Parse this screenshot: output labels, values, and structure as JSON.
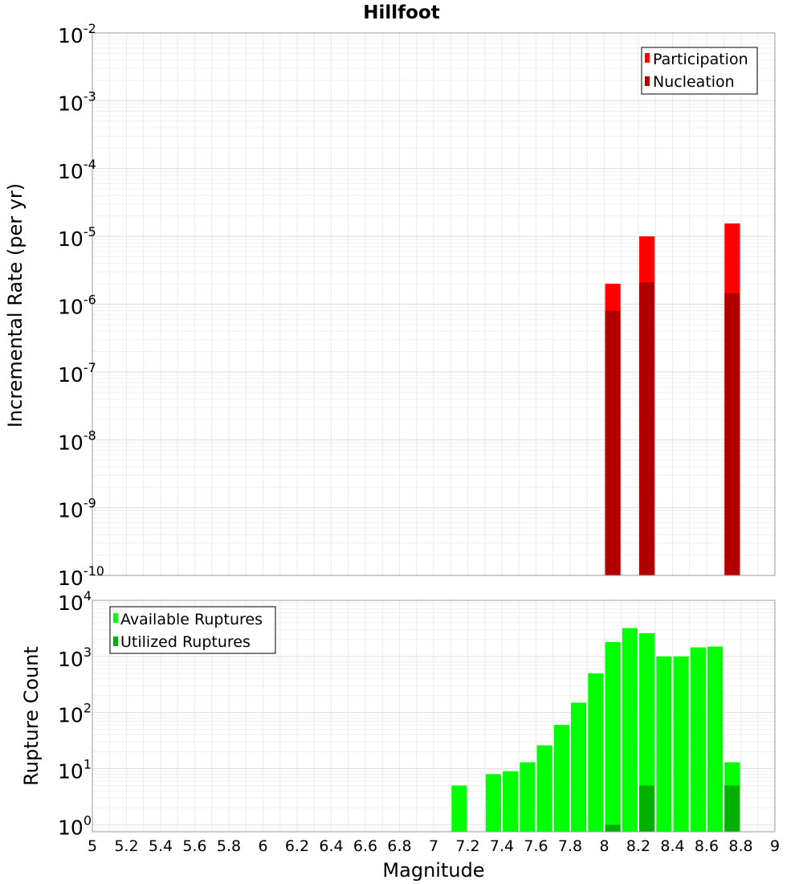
{
  "chart_data": [
    {
      "type": "bar",
      "title": "Hillfoot",
      "xlabel": "Magnitude",
      "ylabel": "Incremental Rate (per yr)",
      "yscale": "log",
      "xlim": [
        5,
        9
      ],
      "ylim": [
        1e-10,
        0.01
      ],
      "ytick_labels": [
        {
          "base": "10",
          "exp": "-10"
        },
        {
          "base": "10",
          "exp": "-9"
        },
        {
          "base": "10",
          "exp": "-8"
        },
        {
          "base": "10",
          "exp": "-7"
        },
        {
          "base": "10",
          "exp": "-6"
        },
        {
          "base": "10",
          "exp": "-5"
        },
        {
          "base": "10",
          "exp": "-4"
        },
        {
          "base": "10",
          "exp": "-3"
        },
        {
          "base": "10",
          "exp": "-2"
        }
      ],
      "grid": true,
      "legend_position": "top-right",
      "bar_width": 0.09,
      "series": [
        {
          "name": "Participation",
          "color": "#ff0000",
          "x": [
            8.05,
            8.25,
            8.75
          ],
          "values": [
            2e-06,
            1e-05,
            1.55e-05
          ]
        },
        {
          "name": "Nucleation",
          "color": "#b00000",
          "x": [
            8.05,
            8.25,
            8.75
          ],
          "values": [
            8e-07,
            2.1e-06,
            1.45e-06
          ]
        }
      ]
    },
    {
      "type": "bar",
      "xlabel": "Magnitude",
      "ylabel": "Rupture Count",
      "yscale": "log",
      "xlim": [
        5,
        9
      ],
      "ylim": [
        0.75,
        10000
      ],
      "ytick_labels": [
        {
          "base": "10",
          "exp": "0"
        },
        {
          "base": "10",
          "exp": "1"
        },
        {
          "base": "10",
          "exp": "2"
        },
        {
          "base": "10",
          "exp": "3"
        },
        {
          "base": "10",
          "exp": "4"
        }
      ],
      "xtick_labels": [
        "5",
        "5.2",
        "5.4",
        "5.6",
        "5.8",
        "6",
        "6.2",
        "6.4",
        "6.6",
        "6.8",
        "7",
        "7.2",
        "7.4",
        "7.6",
        "7.8",
        "8",
        "8.2",
        "8.4",
        "8.6",
        "8.8",
        "9"
      ],
      "grid": true,
      "legend_position": "top-left",
      "bar_width": 0.09,
      "series": [
        {
          "name": "Available Ruptures",
          "color": "#00ff00",
          "x": [
            7.15,
            7.35,
            7.45,
            7.55,
            7.65,
            7.75,
            7.85,
            7.95,
            8.05,
            8.15,
            8.25,
            8.35,
            8.45,
            8.55,
            8.65,
            8.75
          ],
          "values": [
            5,
            8,
            9,
            13,
            26,
            60,
            150,
            500,
            1800,
            3200,
            2600,
            1000,
            1000,
            1450,
            1500,
            13
          ]
        },
        {
          "name": "Utilized Ruptures",
          "color": "#00b000",
          "x": [
            8.05,
            8.25,
            8.75
          ],
          "values": [
            1,
            5,
            5
          ]
        }
      ]
    }
  ]
}
